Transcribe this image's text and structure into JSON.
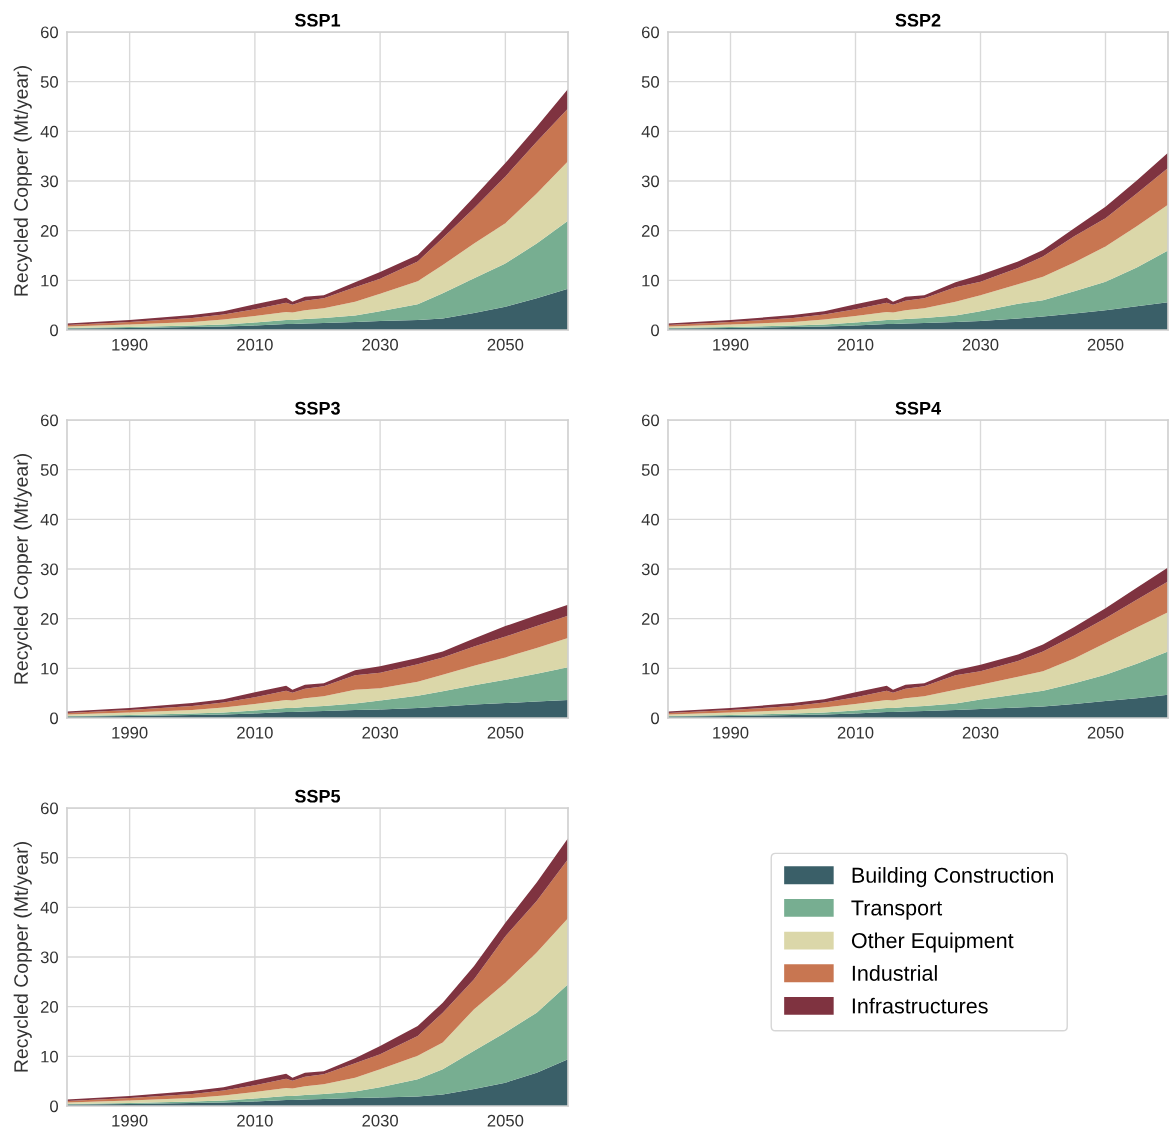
{
  "chart_data": [
    {
      "type": "area",
      "stacked": true,
      "title": "SSP1",
      "ylabel": "Recycled Copper (Mt/year)",
      "xlim": [
        1980,
        2060
      ],
      "xticks": [
        1990,
        2010,
        2030,
        2050
      ],
      "ylim": [
        0,
        60
      ],
      "yticks": [
        0,
        10,
        20,
        30,
        40,
        50,
        60
      ],
      "grid": true,
      "legend": "bottom right",
      "x": [
        1980,
        1990,
        2000,
        2005,
        2010,
        2015,
        2016,
        2018,
        2021,
        2026,
        2030,
        2036,
        2040,
        2045,
        2050,
        2055,
        2060
      ],
      "series": [
        {
          "name": "Building Construction",
          "color": "#3a5f68",
          "values": [
            0.3,
            0.4,
            0.6,
            0.7,
            0.9,
            1.2,
            1.2,
            1.3,
            1.4,
            1.6,
            1.8,
            2.0,
            2.3,
            3.4,
            4.7,
            6.4,
            8.3
          ]
        },
        {
          "name": "Transport",
          "color": "#77ae91",
          "values": [
            0.1,
            0.2,
            0.3,
            0.4,
            0.6,
            0.8,
            0.8,
            0.9,
            1.0,
            1.3,
            2.0,
            3.2,
            5.1,
            7.0,
            8.7,
            11.0,
            13.7
          ]
        },
        {
          "name": "Other Equipment",
          "color": "#dbd7a9",
          "values": [
            0.3,
            0.5,
            0.7,
            1.0,
            1.3,
            1.6,
            1.5,
            1.8,
            2.0,
            2.8,
            3.5,
            4.6,
            5.7,
            7.0,
            8.1,
            10.1,
            12.0
          ]
        },
        {
          "name": "Industrial",
          "color": "#c87651",
          "values": [
            0.3,
            0.5,
            0.8,
            1.0,
            1.4,
            1.9,
            1.6,
            1.9,
            2.0,
            2.9,
            3.0,
            4.0,
            5.4,
            7.1,
            9.4,
            10.4,
            10.6
          ]
        },
        {
          "name": "Infrastructures",
          "color": "#7f3340",
          "values": [
            0.3,
            0.4,
            0.6,
            0.7,
            1.0,
            1.0,
            0.6,
            0.8,
            0.6,
            1.0,
            1.4,
            1.3,
            1.6,
            2.3,
            2.7,
            3.0,
            3.9
          ]
        }
      ]
    },
    {
      "type": "area",
      "stacked": true,
      "title": "SSP2",
      "xlim": [
        1980,
        2060
      ],
      "xticks": [
        1990,
        2010,
        2030,
        2050
      ],
      "ylim": [
        0,
        60
      ],
      "yticks": [
        0,
        10,
        20,
        30,
        40,
        50,
        60
      ],
      "grid": true,
      "legend": false,
      "x": [
        1980,
        1990,
        2000,
        2005,
        2010,
        2015,
        2016,
        2018,
        2021,
        2026,
        2030,
        2036,
        2040,
        2045,
        2050,
        2055,
        2060
      ],
      "series": [
        {
          "color": "#3a5f68",
          "values": [
            0.3,
            0.4,
            0.6,
            0.7,
            0.9,
            1.2,
            1.2,
            1.3,
            1.4,
            1.6,
            1.8,
            2.3,
            2.7,
            3.3,
            4.0,
            4.8,
            5.6
          ]
        },
        {
          "color": "#77ae91",
          "values": [
            0.1,
            0.2,
            0.3,
            0.4,
            0.6,
            0.8,
            0.8,
            0.9,
            1.0,
            1.3,
            2.0,
            3.0,
            3.3,
            4.5,
            5.7,
            7.8,
            10.4
          ]
        },
        {
          "color": "#dbd7a9",
          "values": [
            0.3,
            0.5,
            0.7,
            1.0,
            1.3,
            1.6,
            1.5,
            1.8,
            2.0,
            2.8,
            3.2,
            3.9,
            4.7,
            5.8,
            7.1,
            8.3,
            9.2
          ]
        },
        {
          "color": "#c87651",
          "values": [
            0.3,
            0.5,
            0.8,
            1.0,
            1.4,
            1.9,
            1.6,
            1.9,
            2.0,
            2.9,
            2.7,
            3.3,
            4.1,
            5.3,
            5.7,
            6.6,
            7.4
          ]
        },
        {
          "color": "#7f3340",
          "values": [
            0.3,
            0.4,
            0.6,
            0.7,
            1.0,
            1.0,
            0.6,
            0.8,
            0.6,
            1.0,
            1.4,
            1.3,
            1.3,
            1.6,
            2.3,
            2.6,
            3.1
          ]
        }
      ]
    },
    {
      "type": "area",
      "stacked": true,
      "title": "SSP3",
      "ylabel": "Recycled Copper (Mt/year)",
      "xlim": [
        1980,
        2060
      ],
      "xticks": [
        1990,
        2010,
        2030,
        2050
      ],
      "ylim": [
        0,
        60
      ],
      "yticks": [
        0,
        10,
        20,
        30,
        40,
        50,
        60
      ],
      "grid": true,
      "legend": false,
      "x": [
        1980,
        1990,
        2000,
        2005,
        2010,
        2015,
        2016,
        2018,
        2021,
        2026,
        2030,
        2036,
        2040,
        2045,
        2050,
        2055,
        2060
      ],
      "series": [
        {
          "color": "#3a5f68",
          "values": [
            0.3,
            0.4,
            0.6,
            0.7,
            0.9,
            1.2,
            1.2,
            1.3,
            1.4,
            1.6,
            1.7,
            2.0,
            2.3,
            2.7,
            3.0,
            3.3,
            3.6
          ]
        },
        {
          "color": "#77ae91",
          "values": [
            0.1,
            0.2,
            0.3,
            0.4,
            0.6,
            0.8,
            0.8,
            0.9,
            1.0,
            1.3,
            1.8,
            2.5,
            3.1,
            3.9,
            4.7,
            5.6,
            6.6
          ]
        },
        {
          "color": "#dbd7a9",
          "values": [
            0.3,
            0.5,
            0.7,
            1.0,
            1.3,
            1.6,
            1.5,
            1.8,
            2.0,
            2.8,
            2.5,
            2.8,
            3.3,
            3.9,
            4.5,
            5.2,
            5.9
          ]
        },
        {
          "color": "#c87651",
          "values": [
            0.3,
            0.5,
            0.8,
            1.0,
            1.4,
            1.9,
            1.6,
            1.9,
            2.0,
            2.9,
            3.1,
            3.5,
            3.5,
            3.9,
            4.2,
            4.4,
            4.5
          ]
        },
        {
          "color": "#7f3340",
          "values": [
            0.3,
            0.4,
            0.6,
            0.7,
            1.0,
            1.0,
            0.6,
            0.8,
            0.6,
            1.0,
            1.3,
            1.3,
            1.2,
            1.6,
            2.1,
            2.2,
            2.2
          ]
        }
      ]
    },
    {
      "type": "area",
      "stacked": true,
      "title": "SSP4",
      "xlim": [
        1980,
        2060
      ],
      "xticks": [
        1990,
        2010,
        2030,
        2050
      ],
      "ylim": [
        0,
        60
      ],
      "yticks": [
        0,
        10,
        20,
        30,
        40,
        50,
        60
      ],
      "grid": true,
      "legend": false,
      "x": [
        1980,
        1990,
        2000,
        2005,
        2010,
        2015,
        2016,
        2018,
        2021,
        2026,
        2030,
        2036,
        2040,
        2045,
        2050,
        2055,
        2060
      ],
      "series": [
        {
          "color": "#3a5f68",
          "values": [
            0.3,
            0.4,
            0.6,
            0.7,
            0.9,
            1.2,
            1.2,
            1.3,
            1.4,
            1.6,
            1.8,
            2.1,
            2.3,
            2.8,
            3.4,
            4.0,
            4.7
          ]
        },
        {
          "color": "#77ae91",
          "values": [
            0.1,
            0.2,
            0.3,
            0.4,
            0.6,
            0.8,
            0.8,
            0.9,
            1.0,
            1.3,
            1.9,
            2.7,
            3.2,
            4.2,
            5.3,
            6.9,
            8.7
          ]
        },
        {
          "color": "#dbd7a9",
          "values": [
            0.3,
            0.5,
            0.7,
            1.0,
            1.3,
            1.6,
            1.5,
            1.8,
            2.0,
            2.8,
            3.0,
            3.5,
            3.9,
            5.0,
            6.4,
            7.3,
            7.9
          ]
        },
        {
          "color": "#c87651",
          "values": [
            0.3,
            0.5,
            0.8,
            1.0,
            1.4,
            1.9,
            1.6,
            1.9,
            2.0,
            2.9,
            2.7,
            3.2,
            4.0,
            4.6,
            5.0,
            5.6,
            6.2
          ]
        },
        {
          "color": "#7f3340",
          "values": [
            0.3,
            0.4,
            0.6,
            0.7,
            1.0,
            1.0,
            0.6,
            0.8,
            0.6,
            1.0,
            1.3,
            1.3,
            1.4,
            1.7,
            2.0,
            2.4,
            2.8
          ]
        }
      ]
    },
    {
      "type": "area",
      "stacked": true,
      "title": "SSP5",
      "ylabel": "Recycled Copper (Mt/year)",
      "xlim": [
        1980,
        2060
      ],
      "xticks": [
        1990,
        2010,
        2030,
        2050
      ],
      "ylim": [
        0,
        60
      ],
      "yticks": [
        0,
        10,
        20,
        30,
        40,
        50,
        60
      ],
      "grid": true,
      "legend": false,
      "x": [
        1980,
        1990,
        2000,
        2005,
        2010,
        2015,
        2016,
        2018,
        2021,
        2026,
        2030,
        2036,
        2040,
        2045,
        2050,
        2055,
        2060
      ],
      "series": [
        {
          "color": "#3a5f68",
          "values": [
            0.3,
            0.4,
            0.6,
            0.7,
            0.9,
            1.2,
            1.2,
            1.3,
            1.4,
            1.6,
            1.7,
            1.9,
            2.3,
            3.4,
            4.7,
            6.7,
            9.4
          ]
        },
        {
          "color": "#77ae91",
          "values": [
            0.1,
            0.2,
            0.3,
            0.4,
            0.6,
            0.8,
            0.8,
            0.9,
            1.0,
            1.3,
            2.1,
            3.5,
            5.1,
            7.7,
            10.1,
            12.1,
            15.1
          ]
        },
        {
          "color": "#dbd7a9",
          "values": [
            0.3,
            0.5,
            0.7,
            1.0,
            1.3,
            1.6,
            1.5,
            1.8,
            2.0,
            2.8,
            3.6,
            4.7,
            5.4,
            8.4,
            10.0,
            12.1,
            13.3
          ]
        },
        {
          "color": "#c87651",
          "values": [
            0.3,
            0.5,
            0.8,
            1.0,
            1.4,
            1.9,
            1.6,
            1.9,
            2.0,
            2.9,
            3.0,
            4.0,
            6.0,
            6.0,
            9.4,
            10.4,
            11.9
          ]
        },
        {
          "color": "#7f3340",
          "values": [
            0.3,
            0.4,
            0.6,
            0.7,
            1.0,
            1.0,
            0.6,
            0.8,
            0.6,
            1.0,
            1.7,
            2.0,
            2.0,
            2.7,
            2.7,
            3.7,
            4.2
          ]
        }
      ]
    }
  ]
}
